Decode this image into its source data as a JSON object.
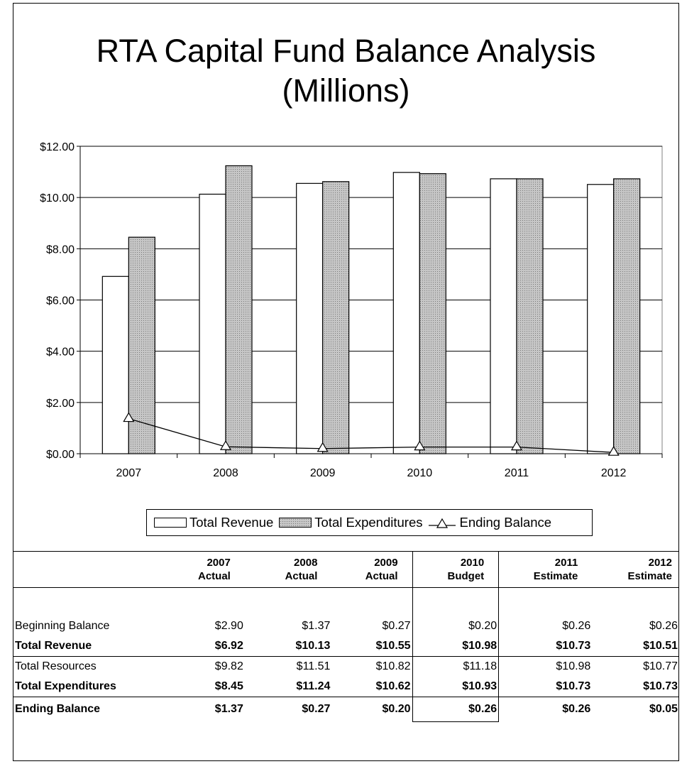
{
  "chart_data": {
    "type": "bar",
    "title": [
      "RTA Capital Fund Balance Analysis",
      "(Millions)"
    ],
    "categories": [
      "2007",
      "2008",
      "2009",
      "2010",
      "2011",
      "2012"
    ],
    "series": [
      {
        "name": "Total Revenue",
        "kind": "bar",
        "color": "#ffffff",
        "values": [
          6.92,
          10.13,
          10.55,
          10.98,
          10.73,
          10.51
        ]
      },
      {
        "name": "Total Expenditures",
        "kind": "bar",
        "color": "#b8b8b8",
        "values": [
          8.45,
          11.24,
          10.62,
          10.93,
          10.73,
          10.73
        ]
      },
      {
        "name": "Ending Balance",
        "kind": "line",
        "marker": "triangle",
        "values": [
          1.37,
          0.27,
          0.2,
          0.26,
          0.26,
          0.05
        ]
      }
    ],
    "ylim": [
      0,
      12
    ],
    "yticks": [
      "$0.00",
      "$2.00",
      "$4.00",
      "$6.00",
      "$8.00",
      "$10.00",
      "$12.00"
    ],
    "grid": true,
    "legend": "bottom"
  },
  "table": {
    "columns": [
      {
        "year": "2007",
        "type": "Actual"
      },
      {
        "year": "2008",
        "type": "Actual"
      },
      {
        "year": "2009",
        "type": "Actual"
      },
      {
        "year": "2010",
        "type": "Budget"
      },
      {
        "year": "2011",
        "type": "Estimate"
      },
      {
        "year": "2012",
        "type": "Estimate"
      }
    ],
    "rows": [
      {
        "label": "Beginning Balance",
        "values": [
          "$2.90",
          "$1.37",
          "$0.27",
          "$0.20",
          "$0.26",
          "$0.26"
        ]
      },
      {
        "label": "Total Revenue",
        "values": [
          "$6.92",
          "$10.13",
          "$10.55",
          "$10.98",
          "$10.73",
          "$10.51"
        ]
      },
      {
        "label": "Total Resources",
        "values": [
          "$9.82",
          "$11.51",
          "$10.82",
          "$11.18",
          "$10.98",
          "$10.77"
        ]
      },
      {
        "label": "Total Expenditures",
        "values": [
          "$8.45",
          "$11.24",
          "$10.62",
          "$10.93",
          "$10.73",
          "$10.73"
        ]
      },
      {
        "label": "Ending Balance",
        "values": [
          "$1.37",
          "$0.27",
          "$0.20",
          "$0.26",
          "$0.26",
          "$0.05"
        ]
      }
    ]
  }
}
